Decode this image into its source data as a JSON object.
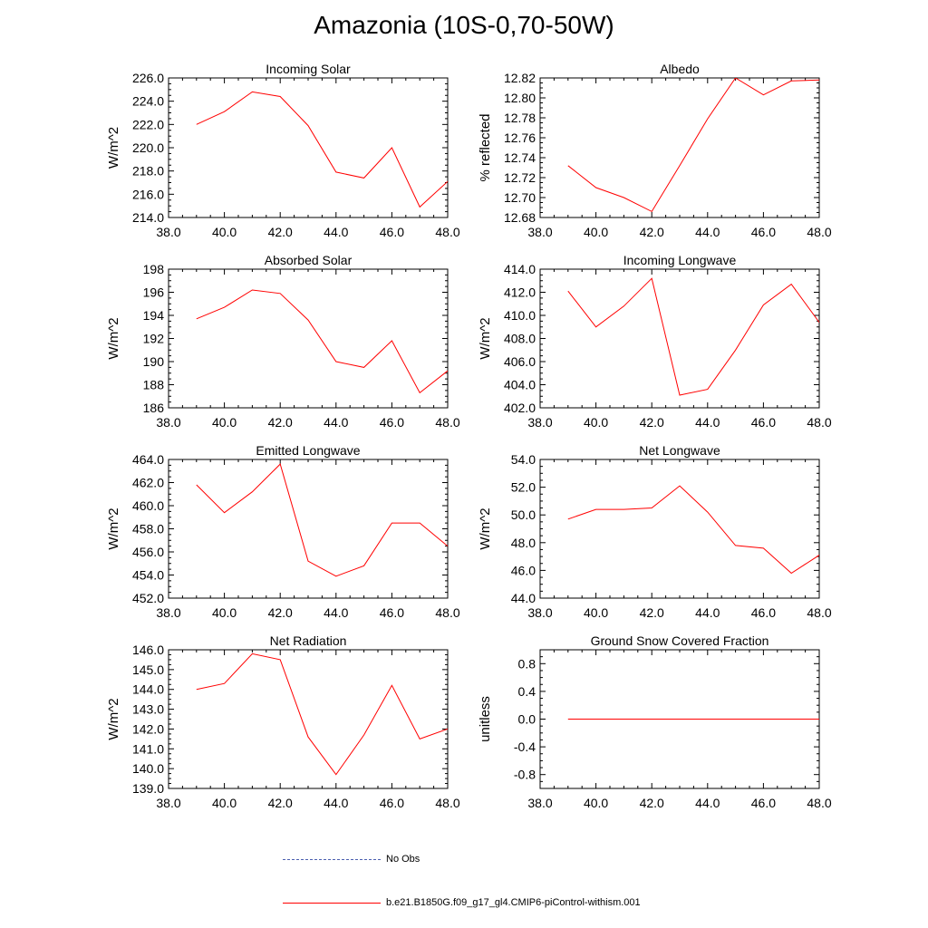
{
  "title": "Amazonia (10S-0,70-50W)",
  "legend": [
    {
      "label": "No Obs",
      "color": "#4b5fb0",
      "dash": true
    },
    {
      "label": "b.e21.B1850G.f09_g17_gl4.CMIP6-piControl-withism.001",
      "color": "#ff0000",
      "dash": false
    }
  ],
  "chart_data": [
    {
      "type": "line",
      "title": "Incoming Solar",
      "ylabel": "W/m^2",
      "xlim": [
        38,
        48
      ],
      "ylim": [
        214,
        226
      ],
      "xticks": [
        "38.0",
        "40.0",
        "42.0",
        "44.0",
        "46.0",
        "48.0"
      ],
      "yticks": [
        "214.0",
        "216.0",
        "218.0",
        "220.0",
        "222.0",
        "224.0",
        "226.0"
      ],
      "x": [
        39,
        40,
        41,
        42,
        43,
        44,
        45,
        46,
        47,
        48
      ],
      "y": [
        222.0,
        223.1,
        224.8,
        224.4,
        221.9,
        217.9,
        217.4,
        220.0,
        214.9,
        217.1
      ],
      "color": "#ff0000"
    },
    {
      "type": "line",
      "title": "Albedo",
      "ylabel": "% reflected",
      "xlim": [
        38,
        48
      ],
      "ylim": [
        12.68,
        12.82
      ],
      "xticks": [
        "38.0",
        "40.0",
        "42.0",
        "44.0",
        "46.0",
        "48.0"
      ],
      "yticks": [
        "12.68",
        "12.70",
        "12.72",
        "12.74",
        "12.76",
        "12.78",
        "12.80",
        "12.82"
      ],
      "x": [
        39,
        40,
        41,
        42,
        43,
        44,
        45,
        46,
        47,
        48
      ],
      "y": [
        12.732,
        12.71,
        12.7,
        12.686,
        12.732,
        12.779,
        12.82,
        12.803,
        12.817,
        12.818
      ],
      "color": "#ff0000"
    },
    {
      "type": "line",
      "title": "Absorbed Solar",
      "ylabel": "W/m^2",
      "xlim": [
        38,
        48
      ],
      "ylim": [
        186,
        198
      ],
      "xticks": [
        "38.0",
        "40.0",
        "42.0",
        "44.0",
        "46.0",
        "48.0"
      ],
      "yticks": [
        "186",
        "188",
        "190",
        "192",
        "194",
        "196",
        "198"
      ],
      "x": [
        39,
        40,
        41,
        42,
        43,
        44,
        45,
        46,
        47,
        48
      ],
      "y": [
        193.7,
        194.7,
        196.2,
        195.9,
        193.6,
        190.0,
        189.5,
        191.8,
        187.3,
        189.2
      ],
      "color": "#ff0000"
    },
    {
      "type": "line",
      "title": "Incoming Longwave",
      "ylabel": "W/m^2",
      "xlim": [
        38,
        48
      ],
      "ylim": [
        402,
        414
      ],
      "xticks": [
        "38.0",
        "40.0",
        "42.0",
        "44.0",
        "46.0",
        "48.0"
      ],
      "yticks": [
        "402.0",
        "404.0",
        "406.0",
        "408.0",
        "410.0",
        "412.0",
        "414.0"
      ],
      "x": [
        39,
        40,
        41,
        42,
        43,
        44,
        45,
        46,
        47,
        48
      ],
      "y": [
        412.1,
        409.0,
        410.8,
        413.2,
        403.1,
        403.6,
        407.0,
        410.9,
        412.7,
        409.4
      ],
      "color": "#ff0000"
    },
    {
      "type": "line",
      "title": "Emitted Longwave",
      "ylabel": "W/m^2",
      "xlim": [
        38,
        48
      ],
      "ylim": [
        452,
        464
      ],
      "xticks": [
        "38.0",
        "40.0",
        "42.0",
        "44.0",
        "46.0",
        "48.0"
      ],
      "yticks": [
        "452.0",
        "454.0",
        "456.0",
        "458.0",
        "460.0",
        "462.0",
        "464.0"
      ],
      "x": [
        39,
        40,
        41,
        42,
        43,
        44,
        45,
        46,
        47,
        48
      ],
      "y": [
        461.8,
        459.4,
        461.2,
        463.6,
        455.2,
        453.9,
        454.8,
        458.5,
        458.5,
        456.5
      ],
      "color": "#ff0000"
    },
    {
      "type": "line",
      "title": "Net Longwave",
      "ylabel": "W/m^2",
      "xlim": [
        38,
        48
      ],
      "ylim": [
        44,
        54
      ],
      "xticks": [
        "38.0",
        "40.0",
        "42.0",
        "44.0",
        "46.0",
        "48.0"
      ],
      "yticks": [
        "44.0",
        "46.0",
        "48.0",
        "50.0",
        "52.0",
        "54.0"
      ],
      "x": [
        39,
        40,
        41,
        42,
        43,
        44,
        45,
        46,
        47,
        48
      ],
      "y": [
        49.7,
        50.4,
        50.4,
        50.5,
        52.1,
        50.2,
        47.8,
        47.6,
        45.8,
        47.1
      ],
      "color": "#ff0000"
    },
    {
      "type": "line",
      "title": "Net Radiation",
      "ylabel": "W/m^2",
      "xlim": [
        38,
        48
      ],
      "ylim": [
        139,
        146
      ],
      "xticks": [
        "38.0",
        "40.0",
        "42.0",
        "44.0",
        "46.0",
        "48.0"
      ],
      "yticks": [
        "139.0",
        "140.0",
        "141.0",
        "142.0",
        "143.0",
        "144.0",
        "145.0",
        "146.0"
      ],
      "x": [
        39,
        40,
        41,
        42,
        43,
        44,
        45,
        46,
        47,
        48
      ],
      "y": [
        144.0,
        144.3,
        145.8,
        145.5,
        141.6,
        139.7,
        141.7,
        144.2,
        141.5,
        142.0
      ],
      "color": "#ff0000"
    },
    {
      "type": "line",
      "title": "Ground Snow Covered Fraction",
      "ylabel": "unitless",
      "xlim": [
        38,
        48
      ],
      "ylim": [
        -1,
        1
      ],
      "xticks": [
        "38.0",
        "40.0",
        "42.0",
        "44.0",
        "46.0",
        "48.0"
      ],
      "yticks": [
        "-0.8",
        "-0.4",
        "0.0",
        "0.4",
        "0.8"
      ],
      "x": [
        39,
        40,
        41,
        42,
        43,
        44,
        45,
        46,
        47,
        48
      ],
      "y": [
        0,
        0,
        0,
        0,
        0,
        0,
        0,
        0,
        0,
        0
      ],
      "color": "#ff0000"
    }
  ]
}
